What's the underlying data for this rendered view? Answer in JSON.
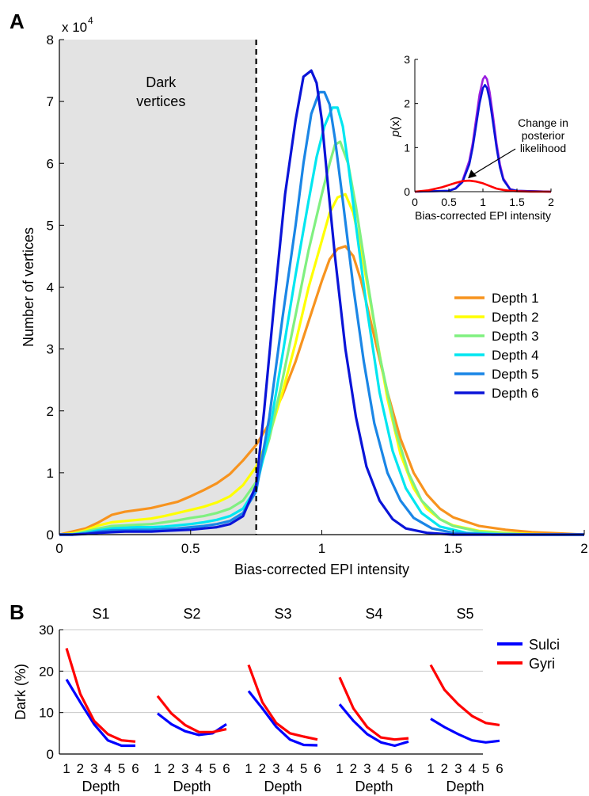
{
  "panel_labels": {
    "a": "A",
    "b": "B"
  },
  "colors": {
    "depth1": "#f7931e",
    "depth2": "#ffff00",
    "depth3": "#80f080",
    "depth4": "#00e6f0",
    "depth5": "#1a86e6",
    "depth6": "#0a14d8",
    "sulci": "#0000ff",
    "gyri": "#ff0000",
    "inset_purple": "#9a1ee0",
    "shade": "#e3e3e3"
  },
  "chart_data": [
    {
      "type": "line",
      "panel": "A",
      "scale_label_base": "x 10",
      "scale_label_exp": "4",
      "xlabel": "Bias-corrected EPI intensity",
      "ylabel": "Number of vertices",
      "xlim": [
        0,
        2
      ],
      "ylim": [
        0,
        8
      ],
      "xticks": [
        "0",
        "0.5",
        "1",
        "1.5",
        "2"
      ],
      "xtick_values": [
        0,
        0.5,
        1,
        1.5,
        2
      ],
      "yticks": [
        "0",
        "1",
        "2",
        "3",
        "4",
        "5",
        "6",
        "7",
        "8"
      ],
      "ytick_values": [
        0,
        1,
        2,
        3,
        4,
        5,
        6,
        7,
        8
      ],
      "shaded_region": {
        "x": [
          0,
          0.75
        ],
        "label_line1": "Dark",
        "label_line2": "vertices"
      },
      "threshold_x": 0.75,
      "legend_position": "right",
      "series": [
        {
          "name": "Depth 1",
          "color_key": "depth1",
          "x": [
            0,
            0.05,
            0.1,
            0.15,
            0.2,
            0.25,
            0.3,
            0.35,
            0.4,
            0.45,
            0.5,
            0.55,
            0.6,
            0.65,
            0.7,
            0.75,
            0.8,
            0.85,
            0.9,
            0.95,
            1.0,
            1.03,
            1.06,
            1.09,
            1.12,
            1.15,
            1.2,
            1.25,
            1.3,
            1.35,
            1.4,
            1.45,
            1.5,
            1.6,
            1.7,
            1.8,
            1.9,
            2.0
          ],
          "y": [
            0,
            0.05,
            0.1,
            0.2,
            0.32,
            0.37,
            0.4,
            0.43,
            0.48,
            0.53,
            0.62,
            0.72,
            0.83,
            0.98,
            1.2,
            1.45,
            1.8,
            2.25,
            2.8,
            3.45,
            4.1,
            4.45,
            4.62,
            4.66,
            4.5,
            4.1,
            3.2,
            2.3,
            1.55,
            1.0,
            0.65,
            0.42,
            0.28,
            0.14,
            0.08,
            0.04,
            0.02,
            0
          ]
        },
        {
          "name": "Depth 2",
          "color_key": "depth2",
          "x": [
            0,
            0.05,
            0.1,
            0.15,
            0.2,
            0.25,
            0.3,
            0.35,
            0.4,
            0.45,
            0.5,
            0.55,
            0.6,
            0.65,
            0.7,
            0.75,
            0.8,
            0.85,
            0.9,
            0.95,
            1.0,
            1.03,
            1.06,
            1.09,
            1.12,
            1.15,
            1.2,
            1.25,
            1.3,
            1.35,
            1.4,
            1.45,
            1.5,
            1.6,
            1.7,
            1.8,
            1.9,
            2.0
          ],
          "y": [
            0,
            0.02,
            0.07,
            0.15,
            0.2,
            0.22,
            0.24,
            0.26,
            0.3,
            0.35,
            0.4,
            0.45,
            0.52,
            0.62,
            0.8,
            1.1,
            1.6,
            2.3,
            3.1,
            4.0,
            4.75,
            5.2,
            5.45,
            5.5,
            5.2,
            4.6,
            3.4,
            2.2,
            1.3,
            0.75,
            0.42,
            0.25,
            0.15,
            0.06,
            0.03,
            0.01,
            0,
            0
          ]
        },
        {
          "name": "Depth 3",
          "color_key": "depth3",
          "x": [
            0,
            0.05,
            0.1,
            0.15,
            0.2,
            0.25,
            0.3,
            0.35,
            0.4,
            0.45,
            0.5,
            0.55,
            0.6,
            0.65,
            0.7,
            0.75,
            0.8,
            0.85,
            0.9,
            0.95,
            1.0,
            1.03,
            1.05,
            1.07,
            1.1,
            1.13,
            1.17,
            1.22,
            1.28,
            1.33,
            1.38,
            1.45,
            1.5,
            1.6,
            1.7,
            1.8,
            1.9,
            2.0
          ],
          "y": [
            0,
            0.01,
            0.05,
            0.1,
            0.14,
            0.15,
            0.16,
            0.17,
            0.2,
            0.23,
            0.27,
            0.3,
            0.35,
            0.42,
            0.55,
            0.85,
            1.55,
            2.5,
            3.55,
            4.6,
            5.5,
            6.0,
            6.3,
            6.35,
            6.0,
            5.3,
            4.2,
            2.9,
            1.7,
            1.0,
            0.55,
            0.25,
            0.14,
            0.05,
            0.02,
            0,
            0,
            0
          ]
        },
        {
          "name": "Depth 4",
          "color_key": "depth4",
          "x": [
            0,
            0.05,
            0.1,
            0.15,
            0.2,
            0.25,
            0.3,
            0.35,
            0.4,
            0.45,
            0.5,
            0.55,
            0.6,
            0.65,
            0.7,
            0.75,
            0.8,
            0.85,
            0.9,
            0.95,
            0.98,
            1.01,
            1.04,
            1.06,
            1.08,
            1.1,
            1.13,
            1.17,
            1.22,
            1.27,
            1.32,
            1.38,
            1.45,
            1.55,
            1.7,
            1.85,
            2.0
          ],
          "y": [
            0,
            0,
            0.03,
            0.07,
            0.1,
            0.11,
            0.12,
            0.12,
            0.13,
            0.15,
            0.17,
            0.2,
            0.24,
            0.3,
            0.42,
            0.75,
            1.65,
            2.9,
            4.2,
            5.4,
            6.1,
            6.6,
            6.9,
            6.9,
            6.6,
            6.0,
            5.0,
            3.7,
            2.3,
            1.35,
            0.75,
            0.35,
            0.13,
            0.03,
            0,
            0,
            0
          ]
        },
        {
          "name": "Depth 5",
          "color_key": "depth5",
          "x": [
            0,
            0.05,
            0.1,
            0.15,
            0.2,
            0.25,
            0.3,
            0.35,
            0.4,
            0.45,
            0.5,
            0.55,
            0.6,
            0.65,
            0.7,
            0.75,
            0.8,
            0.85,
            0.9,
            0.93,
            0.96,
            0.99,
            1.01,
            1.03,
            1.05,
            1.08,
            1.12,
            1.16,
            1.2,
            1.25,
            1.3,
            1.35,
            1.42,
            1.5,
            1.65,
            1.8,
            2.0
          ],
          "y": [
            0,
            0,
            0.02,
            0.05,
            0.07,
            0.07,
            0.08,
            0.08,
            0.09,
            0.1,
            0.12,
            0.14,
            0.17,
            0.22,
            0.35,
            0.7,
            1.9,
            3.5,
            5.0,
            6.0,
            6.8,
            7.15,
            7.15,
            6.95,
            6.4,
            5.4,
            4.0,
            2.8,
            1.8,
            1.0,
            0.55,
            0.27,
            0.1,
            0.03,
            0,
            0,
            0
          ]
        },
        {
          "name": "Depth 6",
          "color_key": "depth6",
          "x": [
            0,
            0.05,
            0.1,
            0.15,
            0.2,
            0.25,
            0.3,
            0.35,
            0.4,
            0.45,
            0.5,
            0.55,
            0.6,
            0.65,
            0.7,
            0.75,
            0.78,
            0.82,
            0.86,
            0.9,
            0.93,
            0.96,
            0.98,
            1.0,
            1.02,
            1.05,
            1.09,
            1.13,
            1.17,
            1.22,
            1.27,
            1.32,
            1.4,
            1.5,
            1.65,
            1.8,
            2.0
          ],
          "y": [
            0,
            0,
            0.01,
            0.03,
            0.04,
            0.05,
            0.05,
            0.05,
            0.06,
            0.07,
            0.08,
            0.1,
            0.12,
            0.17,
            0.3,
            0.8,
            2.0,
            3.8,
            5.5,
            6.7,
            7.4,
            7.5,
            7.3,
            6.7,
            5.8,
            4.5,
            3.0,
            1.9,
            1.1,
            0.55,
            0.25,
            0.1,
            0.03,
            0,
            0,
            0,
            0
          ]
        }
      ],
      "inset": {
        "type": "line",
        "xlabel": "Bias-corrected EPI intensity",
        "ylabel_p": "p",
        "ylabel_arg": "(x)",
        "xlim": [
          0,
          2
        ],
        "ylim": [
          0,
          3
        ],
        "xticks": [
          "0",
          "0.5",
          "1",
          "1.5",
          "2"
        ],
        "xtick_values": [
          0,
          0.5,
          1,
          1.5,
          2
        ],
        "yticks": [
          "0",
          "1",
          "2",
          "3"
        ],
        "ytick_values": [
          0,
          1,
          2,
          3
        ],
        "annotation_lines": [
          "Change in",
          "posterior",
          "likelihood"
        ],
        "arrow_to": [
          0.78,
          0.3
        ],
        "series": [
          {
            "color_key": "inset_purple",
            "x": [
              0,
              0.5,
              0.6,
              0.7,
              0.8,
              0.85,
              0.9,
              0.95,
              1.0,
              1.03,
              1.06,
              1.1,
              1.15,
              1.2,
              1.25,
              1.3,
              1.4,
              1.5,
              2.0
            ],
            "y": [
              0,
              0.02,
              0.08,
              0.25,
              0.7,
              1.1,
              1.65,
              2.2,
              2.55,
              2.62,
              2.55,
              2.25,
              1.7,
              1.1,
              0.62,
              0.3,
              0.06,
              0.02,
              0
            ]
          },
          {
            "color_key": "depth6",
            "x": [
              0,
              0.5,
              0.6,
              0.7,
              0.8,
              0.85,
              0.9,
              0.95,
              1.0,
              1.03,
              1.06,
              1.1,
              1.15,
              1.2,
              1.25,
              1.3,
              1.4,
              1.5,
              2.0
            ],
            "y": [
              0,
              0.02,
              0.07,
              0.22,
              0.62,
              1.0,
              1.5,
              2.0,
              2.35,
              2.42,
              2.35,
              2.08,
              1.55,
              1.0,
              0.55,
              0.27,
              0.05,
              0.02,
              0
            ]
          },
          {
            "color_key": "gyri",
            "x": [
              0,
              0.2,
              0.4,
              0.6,
              0.7,
              0.8,
              0.9,
              1.0,
              1.1,
              1.2,
              1.3,
              1.4,
              1.5,
              1.7,
              2.0
            ],
            "y": [
              0,
              0.03,
              0.1,
              0.2,
              0.24,
              0.25,
              0.23,
              0.19,
              0.13,
              0.07,
              0.04,
              0.02,
              0.01,
              0,
              0
            ]
          }
        ]
      }
    },
    {
      "type": "line",
      "panel": "B",
      "ylabel": "Dark (%)",
      "xlabel": "Depth",
      "ylim": [
        0,
        30
      ],
      "yticks": [
        "0",
        "10",
        "20",
        "30"
      ],
      "ytick_values": [
        0,
        10,
        20,
        30
      ],
      "xticks": [
        "1",
        "2",
        "3",
        "4",
        "5",
        "6"
      ],
      "legend_position": "right",
      "legend": [
        {
          "name": "Sulci",
          "color_key": "sulci"
        },
        {
          "name": "Gyri",
          "color_key": "gyri"
        }
      ],
      "subplots": [
        {
          "title": "S1",
          "sulci": [
            18.0,
            12.5,
            7.2,
            3.3,
            2.0,
            2.0
          ],
          "gyri": [
            25.5,
            14.5,
            8.0,
            4.8,
            3.3,
            3.0
          ]
        },
        {
          "title": "S2",
          "sulci": [
            9.8,
            7.2,
            5.5,
            4.6,
            5.0,
            7.2
          ],
          "gyri": [
            14.0,
            9.8,
            7.0,
            5.3,
            5.3,
            6.0
          ]
        },
        {
          "title": "S3",
          "sulci": [
            15.2,
            11.0,
            6.6,
            3.5,
            2.2,
            2.1
          ],
          "gyri": [
            21.5,
            12.5,
            7.5,
            5.0,
            4.2,
            3.5
          ]
        },
        {
          "title": "S4",
          "sulci": [
            12.0,
            8.0,
            4.8,
            2.8,
            2.0,
            3.0
          ],
          "gyri": [
            18.5,
            11.0,
            6.5,
            4.0,
            3.5,
            3.8
          ]
        },
        {
          "title": "S5",
          "sulci": [
            8.5,
            6.5,
            4.8,
            3.3,
            2.8,
            3.2
          ],
          "gyri": [
            21.5,
            15.5,
            12.0,
            9.2,
            7.5,
            7.0
          ]
        }
      ]
    }
  ]
}
